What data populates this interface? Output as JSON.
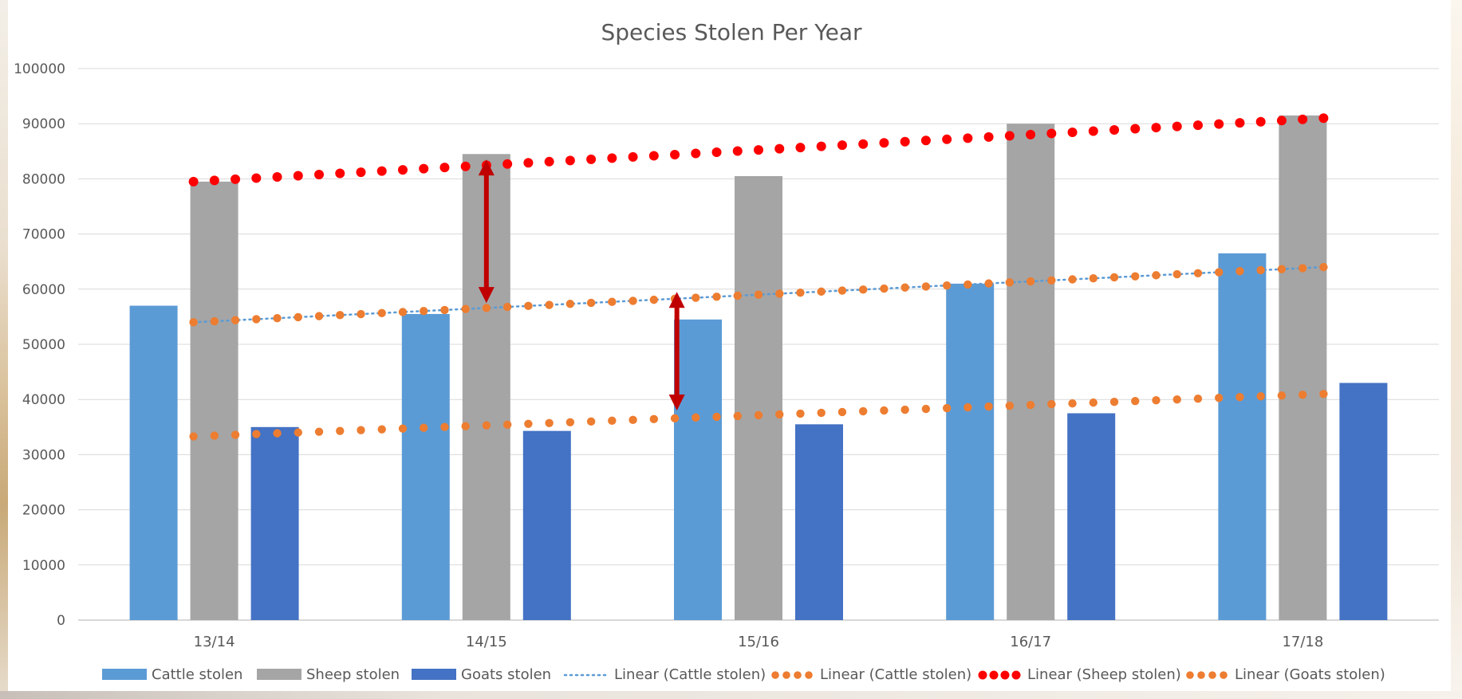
{
  "chart_data": {
    "type": "bar",
    "title": "Species Stolen Per Year",
    "categories": [
      "13/14",
      "14/15",
      "15/16",
      "16/17",
      "17/18"
    ],
    "ylim": [
      0,
      100000
    ],
    "yticks": [
      0,
      10000,
      20000,
      30000,
      40000,
      50000,
      60000,
      70000,
      80000,
      90000,
      100000
    ],
    "grid": true,
    "legend_position": "bottom",
    "series": [
      {
        "name": "Cattle stolen",
        "values": [
          57000,
          55500,
          54500,
          61000,
          66500
        ],
        "color": "#5b9bd5"
      },
      {
        "name": "Sheep stolen",
        "values": [
          79500,
          84500,
          80500,
          90000,
          91500
        ],
        "color": "#a5a5a5"
      },
      {
        "name": "Goats stolen",
        "values": [
          35000,
          34300,
          35500,
          37500,
          43000
        ],
        "color": "#4472c4"
      }
    ],
    "trendlines": [
      {
        "name": "Linear (Cattle stolen)",
        "start": 54000,
        "end": 64000,
        "color": "#5b9bd5",
        "style": "dotted"
      },
      {
        "name": "Linear (Cattle stolen)",
        "start": 54000,
        "end": 64000,
        "color": "#ed7d31",
        "style": "dots"
      },
      {
        "name": "Linear (Sheep stolen)",
        "start": 79500,
        "end": 91000,
        "color": "#ff0000",
        "style": "dots"
      },
      {
        "name": "Linear (Goats stolen)",
        "start": 33300,
        "end": 41000,
        "color": "#ed7d31",
        "style": "dots"
      }
    ],
    "annotations": [
      {
        "type": "double-arrow",
        "category_offset": 1.5,
        "from": 57500,
        "to": 83500,
        "color": "#c00000"
      },
      {
        "type": "double-arrow",
        "category_offset": 2.2,
        "from": 38000,
        "to": 59500,
        "color": "#c00000"
      }
    ]
  }
}
